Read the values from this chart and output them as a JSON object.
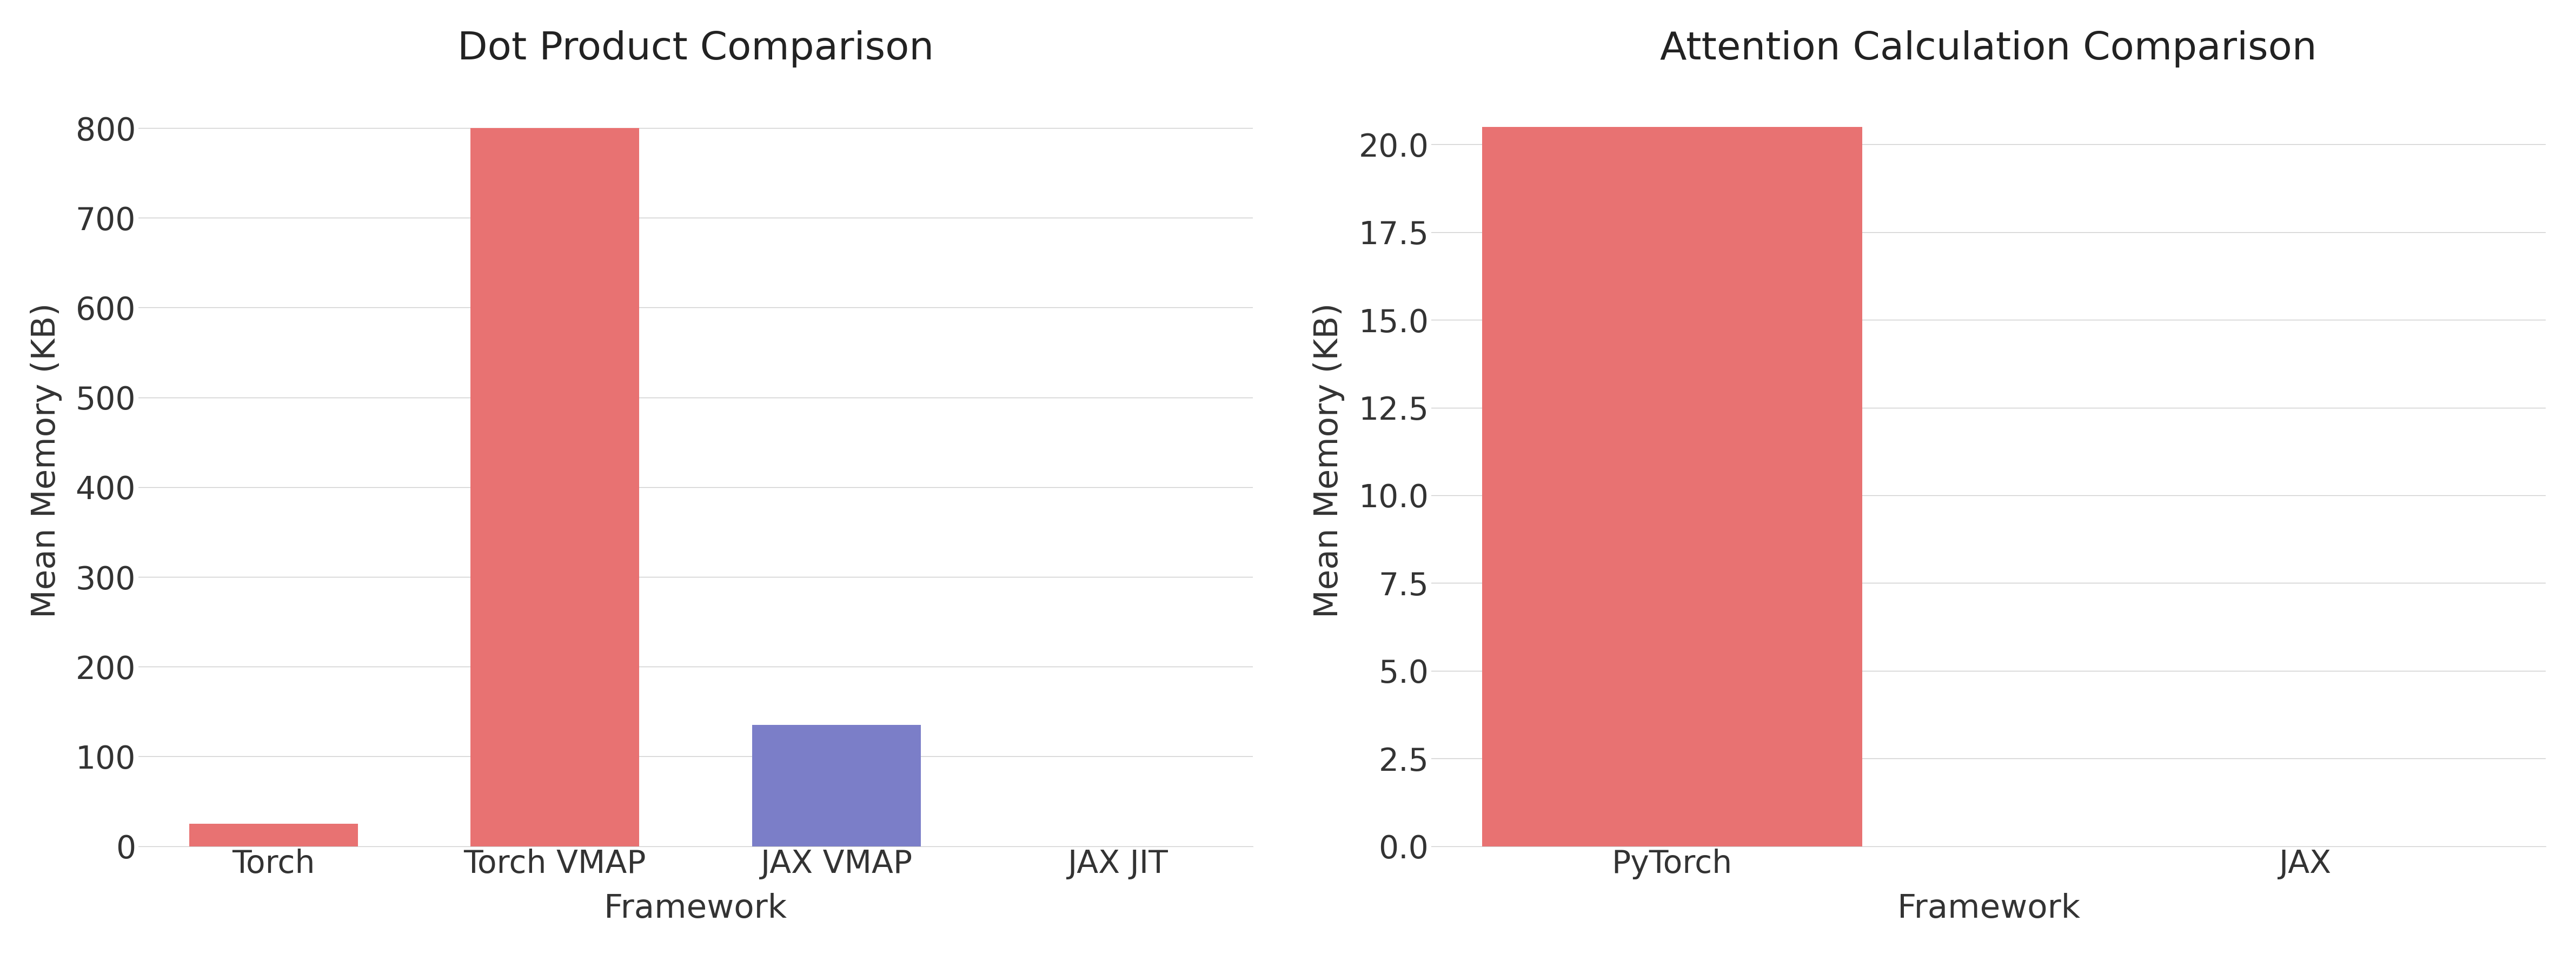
{
  "chart1": {
    "title": "Dot Product Comparison",
    "categories": [
      "Torch",
      "Torch VMAP",
      "JAX VMAP",
      "JAX JIT"
    ],
    "values": [
      25,
      800,
      135,
      0
    ],
    "colors": [
      "#E87272",
      "#E87272",
      "#7B7EC8",
      "#E87272"
    ],
    "xlabel": "Framework",
    "ylabel": "Mean Memory (KB)",
    "ylim": [
      0,
      860
    ]
  },
  "chart2": {
    "title": "Attention Calculation Comparison",
    "categories": [
      "PyTorch",
      "JAX"
    ],
    "values": [
      20.5,
      0
    ],
    "colors": [
      "#E87272",
      "#E87272"
    ],
    "xlabel": "Framework",
    "ylabel": "Mean Memory (KB)",
    "ylim": [
      0,
      22
    ]
  },
  "background_color": "#FFFFFF",
  "title_fontsize": 52,
  "label_fontsize": 44,
  "tick_fontsize": 42
}
